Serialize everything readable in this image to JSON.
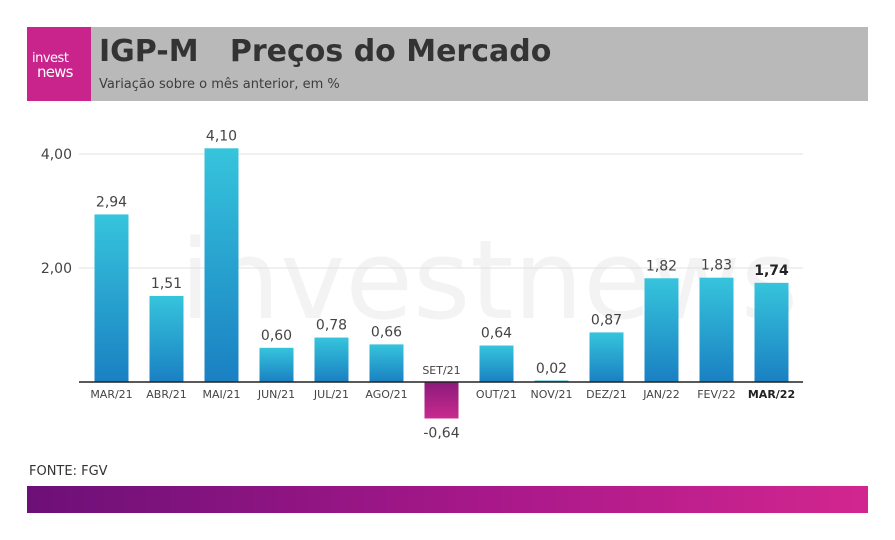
{
  "header": {
    "logo_line1": "invest",
    "logo_line2": "news",
    "title": "IGP-M   Preços do Mercado",
    "subtitle": "Variação sobre o mês anterior, em %"
  },
  "source": "FONTE: FGV",
  "watermark": "investnews",
  "colors": {
    "positive_top": "#36c4dc",
    "positive_bottom": "#1a80c2",
    "negative_top": "#8c1a7a",
    "negative_bottom": "#c82a8e",
    "header_bg": "#b9b9b9",
    "logo_bg": "#c8248c"
  },
  "chart_data": {
    "type": "bar",
    "categories": [
      "MAR/21",
      "ABR/21",
      "MAI/21",
      "JUN/21",
      "JUL/21",
      "AGO/21",
      "SET/21",
      "OUT/21",
      "NOV/21",
      "DEZ/21",
      "JAN/22",
      "FEV/22",
      "MAR/22"
    ],
    "values": [
      2.94,
      1.51,
      4.1,
      0.6,
      0.78,
      0.66,
      -0.64,
      0.64,
      0.02,
      0.87,
      1.82,
      1.83,
      1.74
    ],
    "value_labels": [
      "2,94",
      "1,51",
      "4,10",
      "0,60",
      "0,78",
      "0,66",
      "-0,64",
      "0,64",
      "0,02",
      "0,87",
      "1,82",
      "1,83",
      "1,74"
    ],
    "yticks": [
      2.0,
      4.0
    ],
    "ytick_labels": [
      "2,00",
      "4,00"
    ],
    "ylim": [
      -0.64,
      4.1
    ],
    "grid": true,
    "highlight_index": 12,
    "title": "IGP-M   Preços do Mercado",
    "xlabel": "",
    "ylabel": ""
  }
}
